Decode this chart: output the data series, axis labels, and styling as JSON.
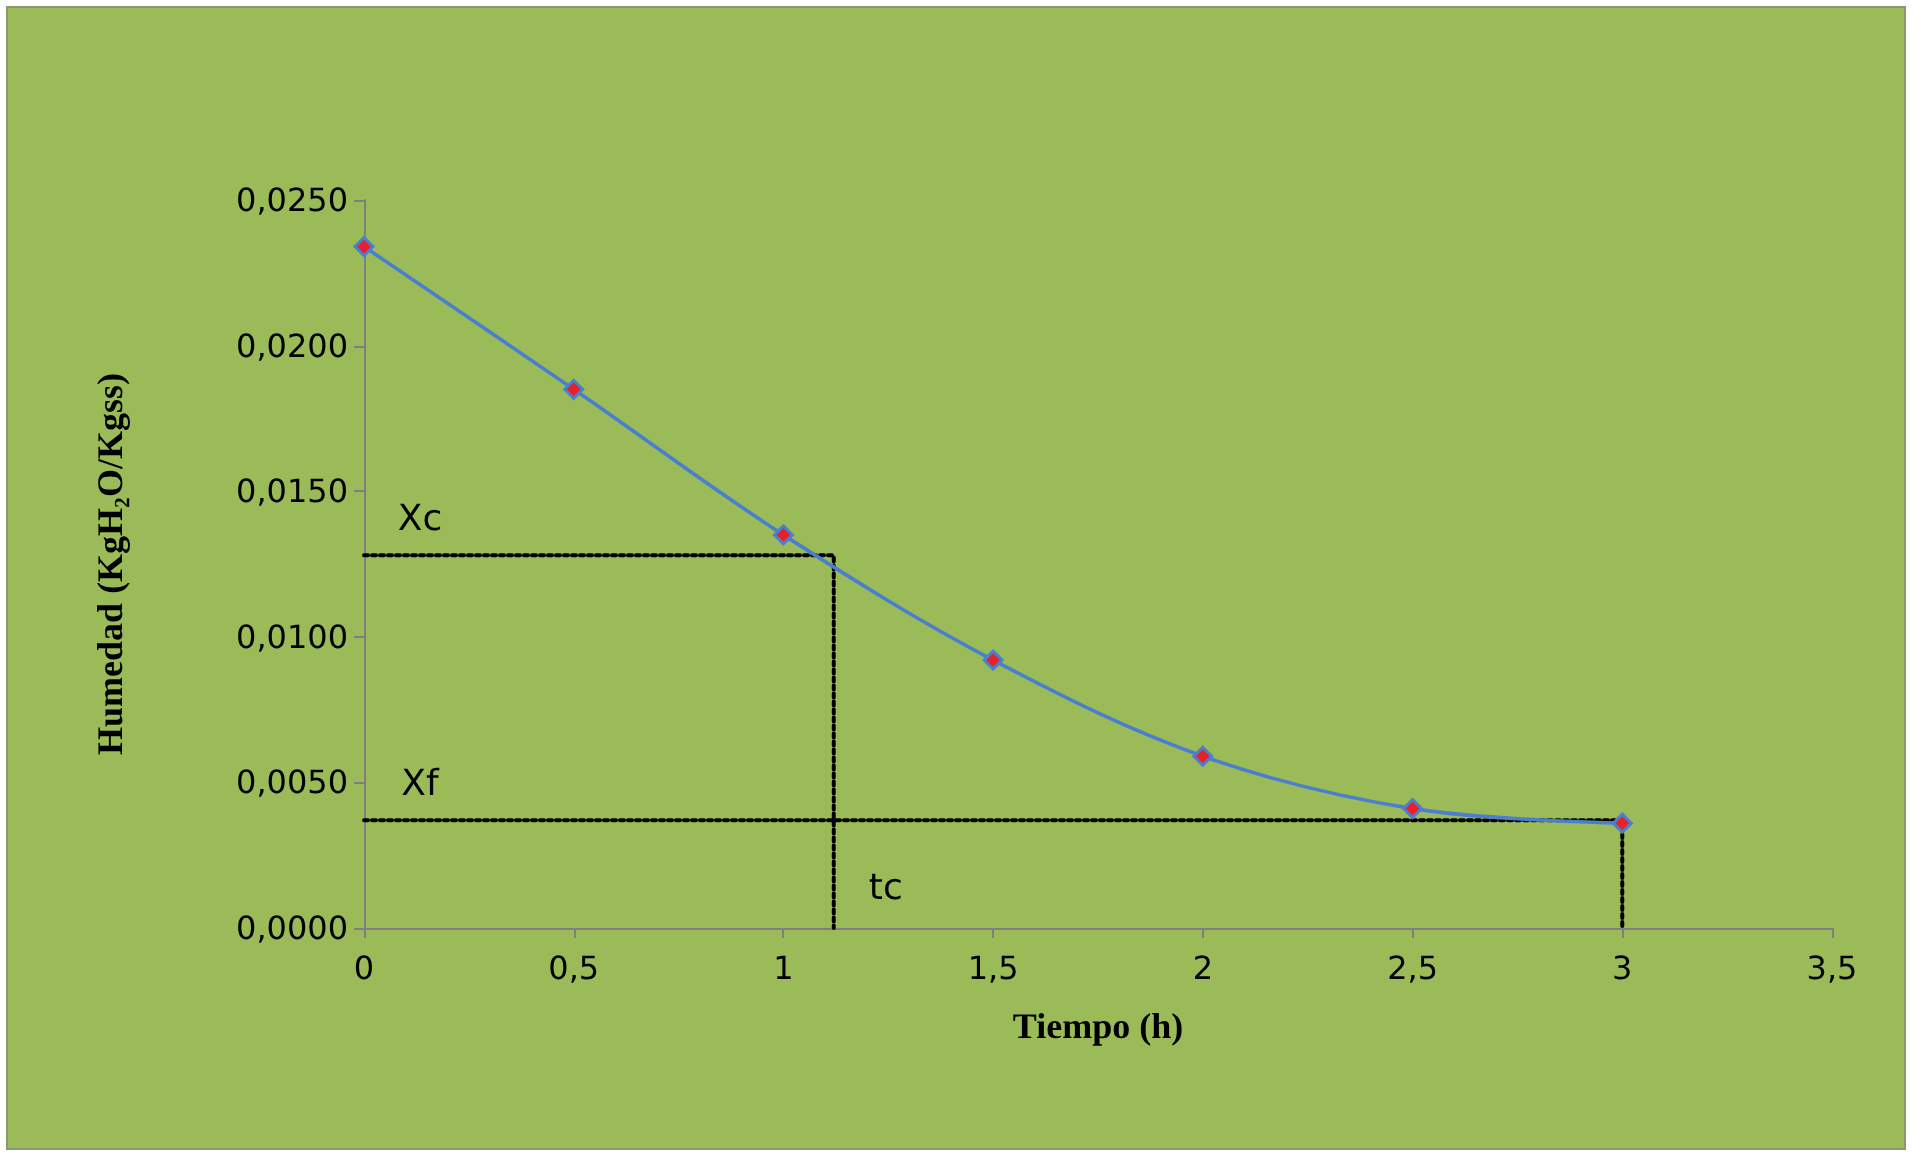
{
  "chart_data": {
    "type": "line",
    "xlabel": "Tiempo (h)",
    "ylabel": "Humedad (KgH₂O/Kgss)",
    "xlim": [
      0,
      3.5
    ],
    "xticks": [
      0,
      {
        "value": 0.5,
        "label": "0,5"
      },
      1,
      {
        "value": 1.5,
        "label": "1,5"
      },
      2,
      {
        "value": 2.5,
        "label": "2,5"
      },
      3,
      {
        "value": 3.5,
        "label": "3,5"
      }
    ],
    "ylim": [
      0,
      0.025
    ],
    "yticks": [
      {
        "value": 0,
        "label": "0,0000"
      },
      {
        "value": 0.005,
        "label": "0,0050"
      },
      {
        "value": 0.01,
        "label": "0,0100"
      },
      {
        "value": 0.015,
        "label": "0,0150"
      },
      {
        "value": 0.02,
        "label": "0,0200"
      },
      {
        "value": 0.025,
        "label": "0,0250"
      }
    ],
    "grid": false,
    "series": [
      {
        "color": "#4a7fd0",
        "marker": "diamond",
        "line_style": "solid",
        "x": [
          0,
          0.5,
          1,
          1.5,
          2,
          2.5,
          3
        ],
        "values": [
          0.0234,
          0.0185,
          0.0135,
          0.0092,
          0.0059,
          0.0041,
          0.0036
        ]
      },
      {
        "color": "#000000",
        "marker": "none",
        "line_style": "dotted",
        "x": [
          0,
          1.12,
          1.12
        ],
        "values": [
          0.0128,
          0.0128,
          0
        ]
      },
      {
        "color": "#000000",
        "marker": "none",
        "line_style": "dotted",
        "x": [
          0,
          3,
          3
        ],
        "values": [
          0.0037,
          0.0037,
          0
        ]
      }
    ],
    "annotations": [
      "Xc",
      "Xf",
      "tc"
    ]
  }
}
